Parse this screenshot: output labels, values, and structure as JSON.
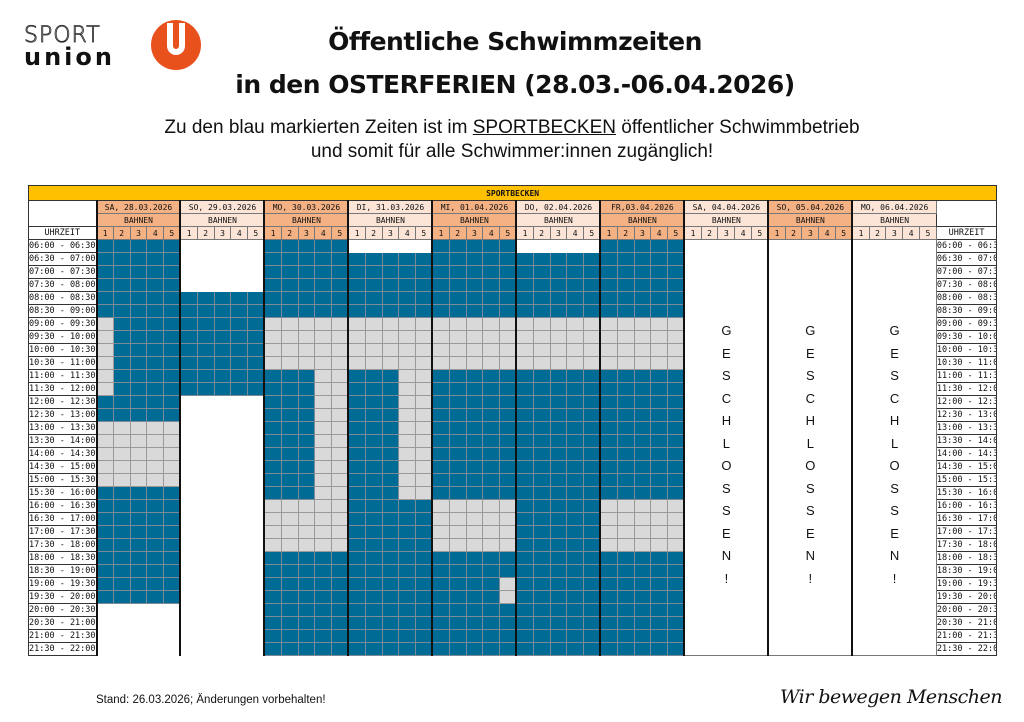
{
  "logo": {
    "text_top": "SPORT",
    "text_bottom": "union",
    "color": "#e8501c"
  },
  "title": {
    "line1": "Öffentliche Schwimmzeiten",
    "line2": "in den OSTERFERIEN (28.03.-06.04.2026)"
  },
  "subtitle": {
    "line1_pre": "Zu den blau markierten Zeiten ist im ",
    "line1_link": "SPORTBECKEN",
    "line1_post": " öffentlicher Schwimmbetrieb",
    "line2": "und somit für alle Schwimmer:innen zugänglich!"
  },
  "table": {
    "pool": "SPORTBECKEN",
    "time_header": "UHRZEIT",
    "lanes_label": "BAHNEN",
    "lanes": [
      "1",
      "2",
      "3",
      "4",
      "5"
    ],
    "colors": {
      "B": "#006c96",
      "G": "#d9d9d9",
      "W": "#ffffff",
      "header": "#ffc000"
    },
    "times": [
      "06:00 - 06:30",
      "06:30 - 07:00",
      "07:00 - 07:30",
      "07:30 - 08:00",
      "08:00 - 08:30",
      "08:30 - 09:00",
      "09:00 - 09:30",
      "09:30 - 10:00",
      "10:00 - 10:30",
      "10:30 - 11:00",
      "11:00 - 11:30",
      "11:30 - 12:00",
      "12:00 - 12:30",
      "12:30 - 13:00",
      "13:00 - 13:30",
      "13:30 - 14:00",
      "14:00 - 14:30",
      "14:30 - 15:00",
      "15:00 - 15:30",
      "15:30 - 16:00",
      "16:00 - 16:30",
      "16:30 - 17:00",
      "17:00 - 17:30",
      "17:30 - 18:00",
      "18:00 - 18:30",
      "18:30 - 19:00",
      "19:00 - 19:30",
      "19:30 - 20:00",
      "20:00 - 20:30",
      "20:30 - 21:00",
      "21:00 - 21:30",
      "21:30 - 22:00"
    ],
    "days": [
      {
        "label": "SA, 28.03.2026",
        "shade": "dk",
        "slots": [
          "BBBBB",
          "BBBBB",
          "BBBBB",
          "BBBBB",
          "BBBBB",
          "BBBBB",
          "GBBBB",
          "GBBBB",
          "GBBBB",
          "GBBBB",
          "GBBBB",
          "GBBBB",
          "BBBBB",
          "BBBBB",
          "GGGGG",
          "GGGGG",
          "GGGGG",
          "GGGGG",
          "GGGGG",
          "BBBBB",
          "BBBBB",
          "BBBBB",
          "BBBBB",
          "BBBBB",
          "BBBBB",
          "BBBBB",
          "BBBBB",
          "BBBBB",
          "WWWWW",
          "WWWWW",
          "WWWWW",
          "WWWWW"
        ]
      },
      {
        "label": "SO, 29.03.2026",
        "shade": "lt",
        "slots": [
          "WWWWW",
          "WWWWW",
          "WWWWW",
          "WWWWW",
          "BBBBB",
          "BBBBB",
          "BBBBB",
          "BBBBB",
          "BBBBB",
          "BBBBB",
          "BBBBB",
          "BBBBB",
          "WWWWW",
          "WWWWW",
          "WWWWW",
          "WWWWW",
          "WWWWW",
          "WWWWW",
          "WWWWW",
          "WWWWW",
          "WWWWW",
          "WWWWW",
          "WWWWW",
          "WWWWW",
          "WWWWW",
          "WWWWW",
          "WWWWW",
          "WWWWW",
          "WWWWW",
          "WWWWW",
          "WWWWW",
          "WWWWW"
        ]
      },
      {
        "label": "MO, 30.03.2026",
        "shade": "dk",
        "slots": [
          "BBBBB",
          "BBBBB",
          "BBBBB",
          "BBBBB",
          "BBBBB",
          "BBBBB",
          "GGGGG",
          "GGGGG",
          "GGGGG",
          "GGGGG",
          "BBBGG",
          "BBBGG",
          "BBBGG",
          "BBBGG",
          "BBBGG",
          "BBBGG",
          "BBBGG",
          "BBBGG",
          "BBBGG",
          "BBBGG",
          "GGGGG",
          "GGGGG",
          "GGGGG",
          "GGGGG",
          "BBBBB",
          "BBBBB",
          "BBBBB",
          "BBBBB",
          "BBBBB",
          "BBBBB",
          "BBBBB",
          "BBBBB"
        ]
      },
      {
        "label": "DI, 31.03.2026",
        "shade": "lt",
        "slots": [
          "WWWWW",
          "BBBBB",
          "BBBBB",
          "BBBBB",
          "BBBBB",
          "BBBBB",
          "GGGGG",
          "GGGGG",
          "GGGGG",
          "GGGGG",
          "BBBGG",
          "BBBGG",
          "BBBGG",
          "BBBGG",
          "BBBGG",
          "BBBGG",
          "BBBGG",
          "BBBGG",
          "BBBGG",
          "BBBGG",
          "BBBBB",
          "BBBBB",
          "BBBBB",
          "BBBBB",
          "BBBBB",
          "BBBBB",
          "BBBBB",
          "BBBBB",
          "BBBBB",
          "BBBBB",
          "BBBBB",
          "BBBBB"
        ]
      },
      {
        "label": "MI, 01.04.2026",
        "shade": "dk",
        "slots": [
          "BBBBB",
          "BBBBB",
          "BBBBB",
          "BBBBB",
          "BBBBB",
          "BBBBB",
          "GGGGG",
          "GGGGG",
          "GGGGG",
          "GGGGG",
          "BBBBB",
          "BBBBB",
          "BBBBB",
          "BBBBB",
          "BBBBB",
          "BBBBB",
          "BBBBB",
          "BBBBB",
          "BBBBB",
          "BBBBB",
          "GGGGG",
          "GGGGG",
          "GGGGG",
          "GGGGG",
          "BBBBB",
          "BBBBB",
          "BBBBG",
          "BBBBG",
          "BBBBB",
          "BBBBB",
          "BBBBB",
          "BBBBB"
        ]
      },
      {
        "label": "DO, 02.04.2026",
        "shade": "lt",
        "slots": [
          "WWWWW",
          "BBBBB",
          "BBBBB",
          "BBBBB",
          "BBBBB",
          "BBBBB",
          "GGGGG",
          "GGGGG",
          "GGGGG",
          "GGGGG",
          "BBBBB",
          "BBBBB",
          "BBBBB",
          "BBBBB",
          "BBBBB",
          "BBBBB",
          "BBBBB",
          "BBBBB",
          "BBBBB",
          "BBBBB",
          "BBBBB",
          "BBBBB",
          "BBBBB",
          "BBBBB",
          "BBBBB",
          "BBBBB",
          "BBBBB",
          "BBBBB",
          "BBBBB",
          "BBBBB",
          "BBBBB",
          "BBBBB"
        ]
      },
      {
        "label": "FR,03.04.2026",
        "shade": "dk",
        "slots": [
          "BBBBB",
          "BBBBB",
          "BBBBB",
          "BBBBB",
          "BBBBB",
          "BBBBB",
          "GGGGG",
          "GGGGG",
          "GGGGG",
          "GGGGG",
          "BBBBB",
          "BBBBB",
          "BBBBB",
          "BBBBB",
          "BBBBB",
          "BBBBB",
          "BBBBB",
          "BBBBB",
          "BBBBB",
          "BBBBB",
          "GGGGG",
          "GGGGG",
          "GGGGG",
          "GGGGG",
          "BBBBB",
          "BBBBB",
          "BBBBB",
          "BBBBB",
          "BBBBB",
          "BBBBB",
          "BBBBB",
          "BBBBB"
        ]
      },
      {
        "label": "SA, 04.04.2026",
        "shade": "lt",
        "closed": "GESCHLOSSEN!"
      },
      {
        "label": "SO, 05.04.2026",
        "shade": "dk",
        "closed": "GESCHLOSSEN!"
      },
      {
        "label": "MO, 06.04.2026",
        "shade": "lt",
        "closed": "GESCHLOSSEN!"
      }
    ]
  },
  "footer": {
    "note": "Stand: 26.03.2026; Änderungen vorbehalten!",
    "slogan": "Wir bewegen Menschen"
  }
}
